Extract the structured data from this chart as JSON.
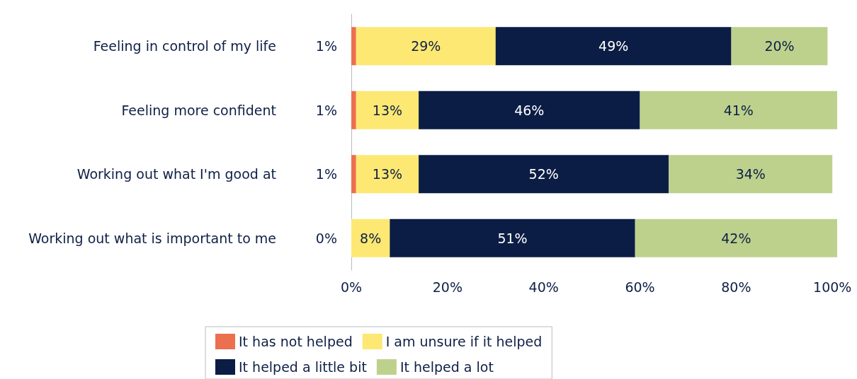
{
  "chart_data": {
    "type": "bar",
    "orientation": "horizontal",
    "stacked": true,
    "categories": [
      "Feeling in control of my life",
      "Feeling more confident",
      "Working out what I'm good at",
      "Working out what is important to me"
    ],
    "series": [
      {
        "name": "It has not helped",
        "color": "#ec6f4f",
        "values": [
          1,
          1,
          1,
          0
        ],
        "value_labels": [
          "1%",
          "1%",
          "1%",
          "0%"
        ]
      },
      {
        "name": "I am unsure if it helped",
        "color": "#fde873",
        "values": [
          29,
          13,
          13,
          8
        ],
        "value_labels": [
          "29%",
          "13%",
          "13%",
          "8%"
        ]
      },
      {
        "name": "It helped a little bit",
        "color": "#0b1d44",
        "values": [
          49,
          46,
          52,
          51
        ],
        "value_labels": [
          "49%",
          "46%",
          "52%",
          "51%"
        ]
      },
      {
        "name": "It helped a lot",
        "color": "#bdd18d",
        "values": [
          20,
          41,
          34,
          42
        ],
        "value_labels": [
          "20%",
          "41%",
          "34%",
          "42%"
        ]
      }
    ],
    "xlim": [
      0,
      101
    ],
    "xticks": [
      {
        "value": 0,
        "label": "0%"
      },
      {
        "value": 20,
        "label": "20%"
      },
      {
        "value": 40,
        "label": "40%"
      },
      {
        "value": 60,
        "label": "60%"
      },
      {
        "value": 80,
        "label": "80%"
      },
      {
        "value": 100,
        "label": "100%"
      }
    ],
    "grid": false,
    "legend": "bottom"
  }
}
